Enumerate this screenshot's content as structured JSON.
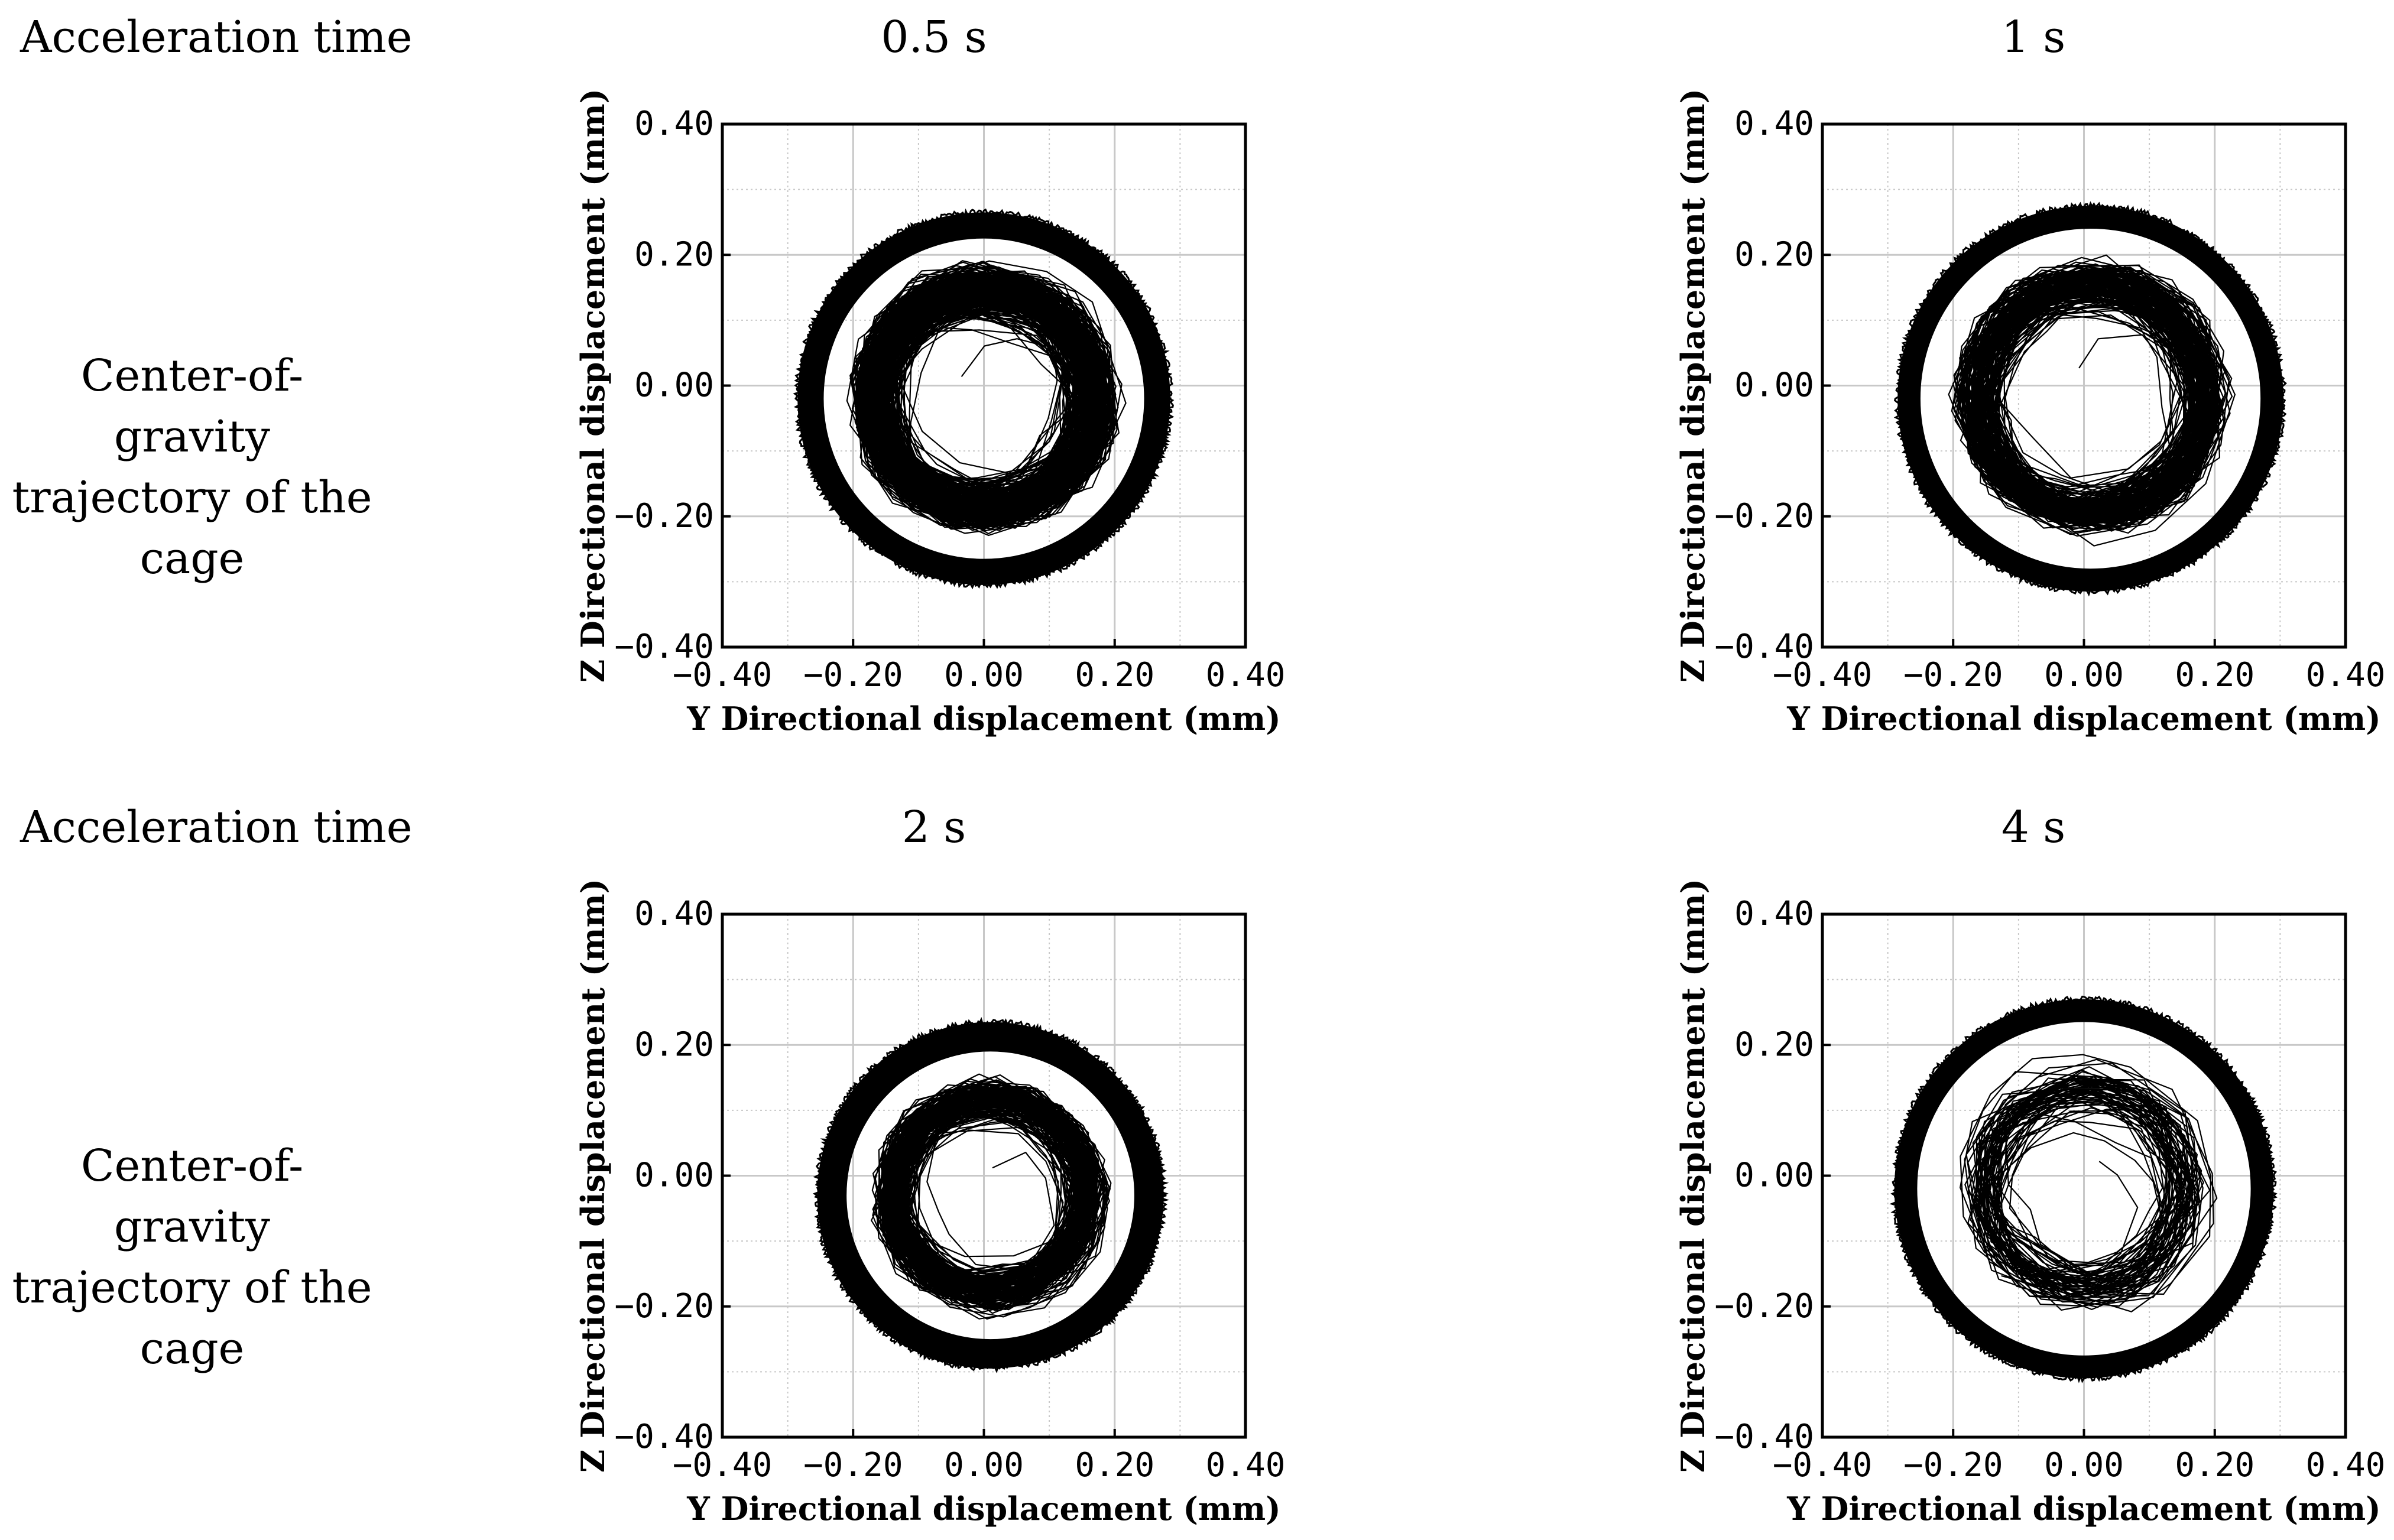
{
  "row_header": "Acceleration time",
  "trajectory_label_lines": [
    "Center-of-gravity",
    "trajectory of the",
    "cage"
  ],
  "line_color": "#000000",
  "grid_color": "#c8c8c8",
  "chart_data": [
    {
      "type": "scatter",
      "panel_label": "0.5 s",
      "xlabel": "Y Directional displacement (mm)",
      "ylabel": "Z Directional displacement (mm)",
      "xlim": [
        -0.4,
        0.4
      ],
      "ylim": [
        -0.4,
        0.4
      ],
      "xticks": [
        -0.4,
        -0.2,
        0.0,
        0.2,
        0.4
      ],
      "yticks": [
        -0.4,
        -0.2,
        0.0,
        0.2,
        0.4
      ],
      "xtick_labels": [
        "−0.40",
        "−0.20",
        "0.00",
        "0.20",
        "0.40"
      ],
      "ytick_labels": [
        "−0.40",
        "−0.20",
        "0.00",
        "0.20",
        "0.40"
      ],
      "grid": true,
      "trajectory": {
        "center": [
          0.0,
          -0.02
        ],
        "outer_radius": 0.285,
        "ring_width": 0.04,
        "inner_fill_radius": 0.24,
        "inner_density": "high"
      }
    },
    {
      "type": "scatter",
      "panel_label": "1 s",
      "xlabel": "Y Directional displacement (mm)",
      "ylabel": "Z Directional displacement (mm)",
      "xlim": [
        -0.4,
        0.4
      ],
      "ylim": [
        -0.4,
        0.4
      ],
      "xticks": [
        -0.4,
        -0.2,
        0.0,
        0.2,
        0.4
      ],
      "yticks": [
        -0.4,
        -0.2,
        0.0,
        0.2,
        0.4
      ],
      "xtick_labels": [
        "−0.40",
        "−0.20",
        "0.00",
        "0.20",
        "0.40"
      ],
      "ytick_labels": [
        "−0.40",
        "−0.20",
        "0.00",
        "0.20",
        "0.40"
      ],
      "grid": true,
      "trajectory": {
        "center": [
          0.01,
          -0.02
        ],
        "outer_radius": 0.295,
        "ring_width": 0.035,
        "inner_fill_radius": 0.25,
        "inner_density": "medium"
      }
    },
    {
      "type": "scatter",
      "panel_label": "2 s",
      "xlabel": "Y Directional displacement (mm)",
      "ylabel": "Z Directional displacement (mm)",
      "xlim": [
        -0.4,
        0.4
      ],
      "ylim": [
        -0.4,
        0.4
      ],
      "xticks": [
        -0.4,
        -0.2,
        0.0,
        0.2,
        0.4
      ],
      "yticks": [
        -0.4,
        -0.2,
        0.0,
        0.2,
        0.4
      ],
      "xtick_labels": [
        "−0.40",
        "−0.20",
        "0.00",
        "0.20",
        "0.40"
      ],
      "ytick_labels": [
        "−0.40",
        "−0.20",
        "0.00",
        "0.20",
        "0.40"
      ],
      "grid": true,
      "trajectory": {
        "center": [
          0.01,
          -0.03
        ],
        "outer_radius": 0.265,
        "ring_width": 0.045,
        "inner_fill_radius": 0.21,
        "inner_density": "medium"
      }
    },
    {
      "type": "scatter",
      "panel_label": "4 s",
      "xlabel": "Y Directional displacement (mm)",
      "ylabel": "Z Directional displacement (mm)",
      "xlim": [
        -0.4,
        0.4
      ],
      "ylim": [
        -0.4,
        0.4
      ],
      "xticks": [
        -0.4,
        -0.2,
        0.0,
        0.2,
        0.4
      ],
      "yticks": [
        -0.4,
        -0.2,
        0.0,
        0.2,
        0.4
      ],
      "xtick_labels": [
        "−0.40",
        "−0.20",
        "0.00",
        "0.20",
        "0.40"
      ],
      "ytick_labels": [
        "−0.40",
        "−0.20",
        "0.00",
        "0.20",
        "0.40"
      ],
      "grid": true,
      "trajectory": {
        "center": [
          0.0,
          -0.02
        ],
        "outer_radius": 0.29,
        "ring_width": 0.035,
        "inner_fill_radius": 0.24,
        "inner_density": "low"
      }
    }
  ]
}
